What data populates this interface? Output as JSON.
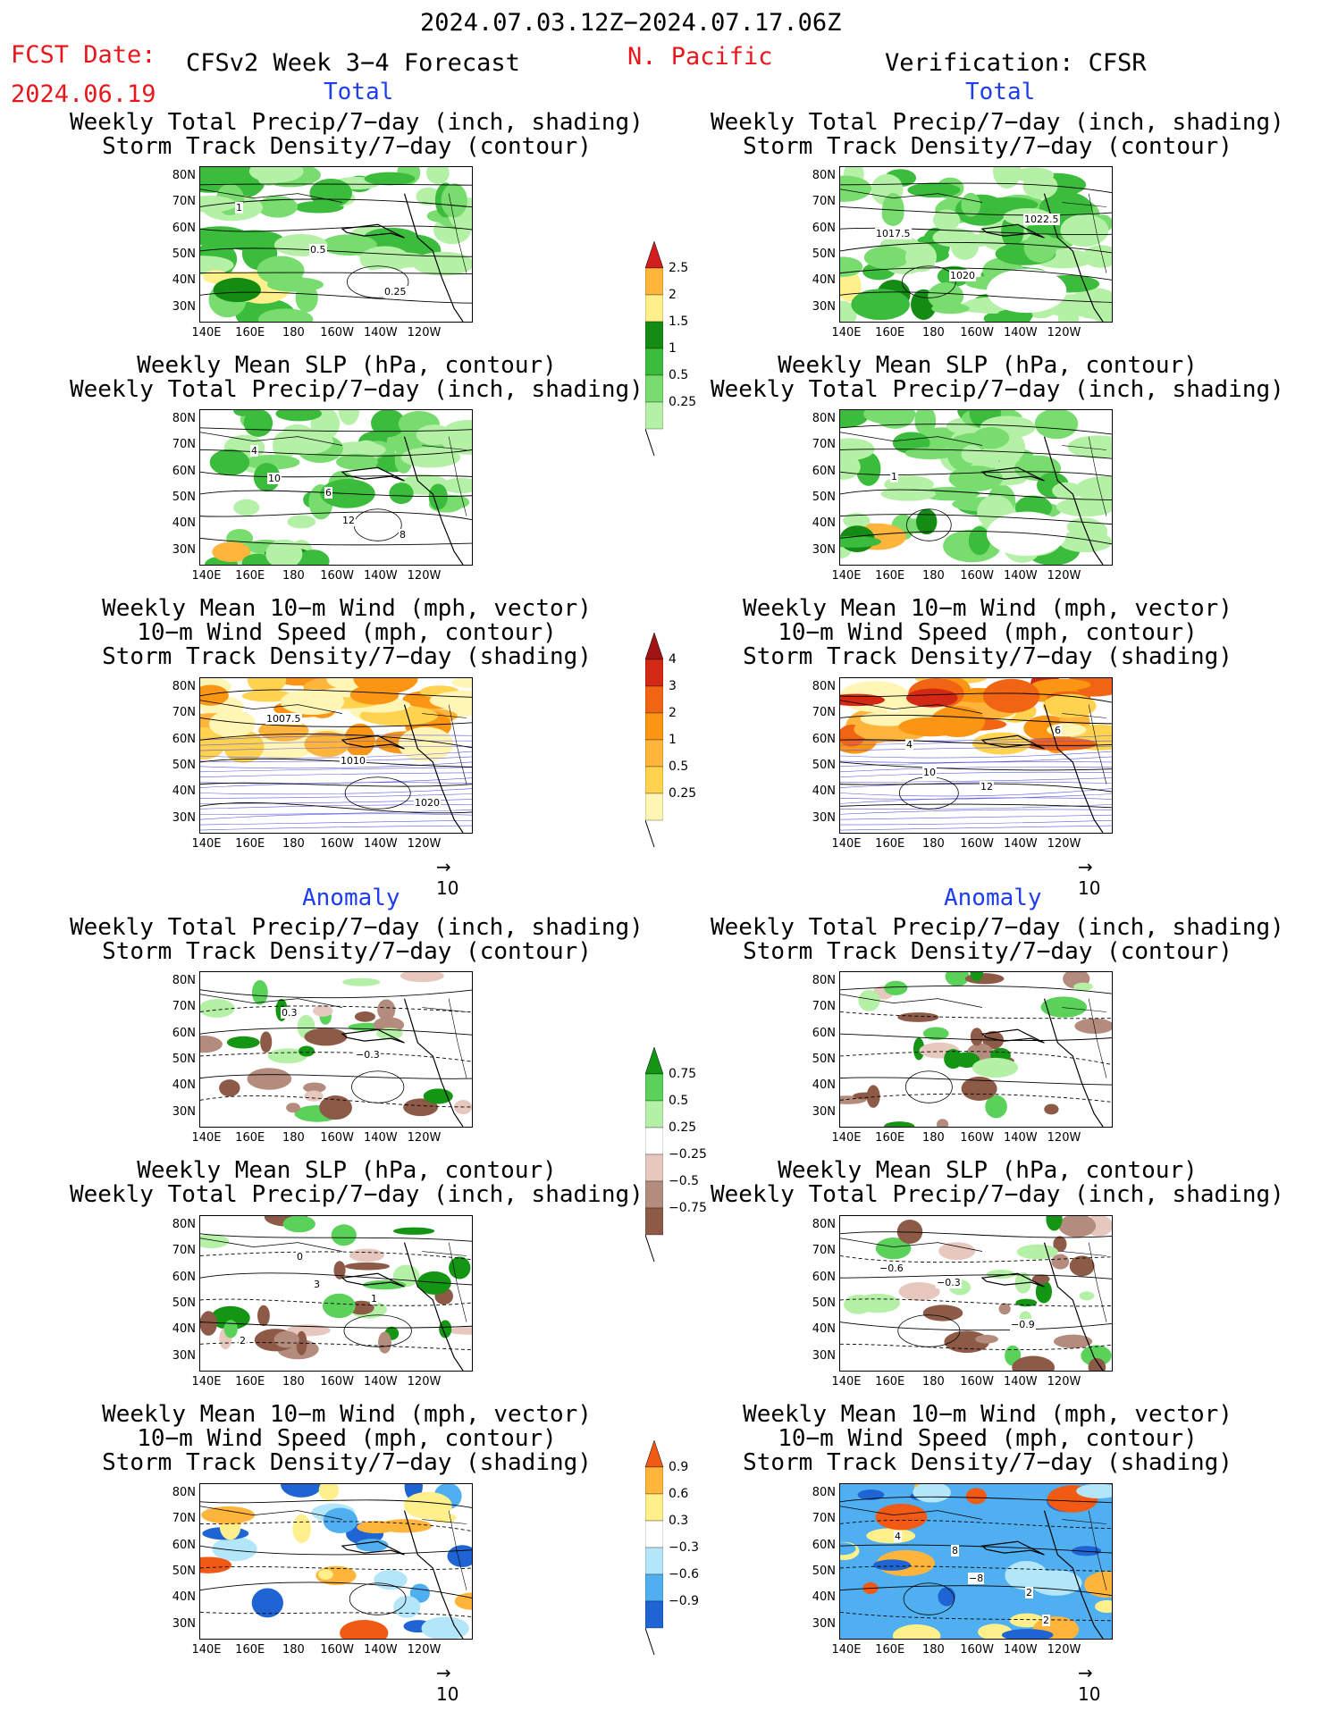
{
  "header": {
    "date_range": "2024.07.03.12Z−2024.07.17.06Z",
    "fcst_label": "FCST Date:",
    "fcst_date": "2024.06.19",
    "left_title": "CFSv2 Week 3−4 Forecast",
    "region": "N. Pacific",
    "right_title": "Verification: CFSR"
  },
  "sections": {
    "total": "Total",
    "anomaly": "Anomaly"
  },
  "titles": {
    "precip_storm": [
      "Weekly Total Precip/7−day (inch, shading)",
      "Storm Track Density/7−day (contour)"
    ],
    "slp_precip": [
      "Weekly Mean SLP (hPa, contour)",
      "Weekly Total Precip/7−day (inch, shading)"
    ],
    "wind_storm": [
      "Weekly Mean 10−m Wind (mph, vector)",
      "10−m Wind Speed (mph, contour)",
      "Storm Track Density/7−day (shading)"
    ]
  },
  "axes": {
    "lat": [
      "80N",
      "70N",
      "60N",
      "50N",
      "40N",
      "30N"
    ],
    "lon": [
      "140E",
      "160E",
      "180",
      "160W",
      "140W",
      "120W"
    ]
  },
  "vector_ref": "10",
  "colorbars": {
    "precip_total": [
      "2.5",
      "2",
      "1.5",
      "1",
      "0.5",
      "0.25"
    ],
    "storm_total": [
      "4",
      "3",
      "2",
      "1",
      "0.5",
      "0.25"
    ],
    "precip_anom": [
      "0.75",
      "0.5",
      "0.25",
      "−0.25",
      "−0.5",
      "−0.75"
    ],
    "storm_anom": [
      "0.9",
      "0.6",
      "0.3",
      "−0.3",
      "−0.6",
      "−0.9"
    ]
  },
  "contour_labels": {
    "p1": [
      "1",
      "0.5",
      "0.25"
    ],
    "p2": [
      "1017.5",
      "1020",
      "1022.5"
    ],
    "p3": [
      "4",
      "6",
      "8",
      "10",
      "12"
    ],
    "p4": [
      "1"
    ],
    "p5": [
      "1007.5",
      "1010",
      "1020"
    ],
    "p6": [
      "4",
      "12",
      "6",
      "10"
    ],
    "p7": [
      "0.3",
      "−0.3"
    ],
    "p9": [
      "0",
      "1",
      "2",
      "3"
    ],
    "p10": [
      "−0.3",
      "−0.9",
      "−0.6"
    ],
    "p12": [
      "8",
      "2",
      "4",
      "−8",
      "2"
    ]
  },
  "colors": {
    "red_text": "#e8171b",
    "blue_text": "#1f3df0",
    "precip": [
      "#b4f0a6",
      "#78dd6e",
      "#3cbc3c",
      "#148c14",
      "#fff08c",
      "#ffb43c",
      "#f05a14",
      "#d21e1e"
    ],
    "storm": [
      "#fff5b4",
      "#ffd250",
      "#ffb43c",
      "#fa9614",
      "#f06414",
      "#d22814",
      "#a01414"
    ],
    "precip_anom_pos": [
      "#b4f0a6",
      "#5ad25a",
      "#149614"
    ],
    "precip_anom_neg": [
      "#e6c8be",
      "#b48c7d",
      "#8c5a46"
    ],
    "storm_anom_pos": [
      "#fff08c",
      "#ffb43c",
      "#f05a14"
    ],
    "storm_anom_neg": [
      "#b4e6fa",
      "#50aff0",
      "#1e64d2"
    ]
  }
}
